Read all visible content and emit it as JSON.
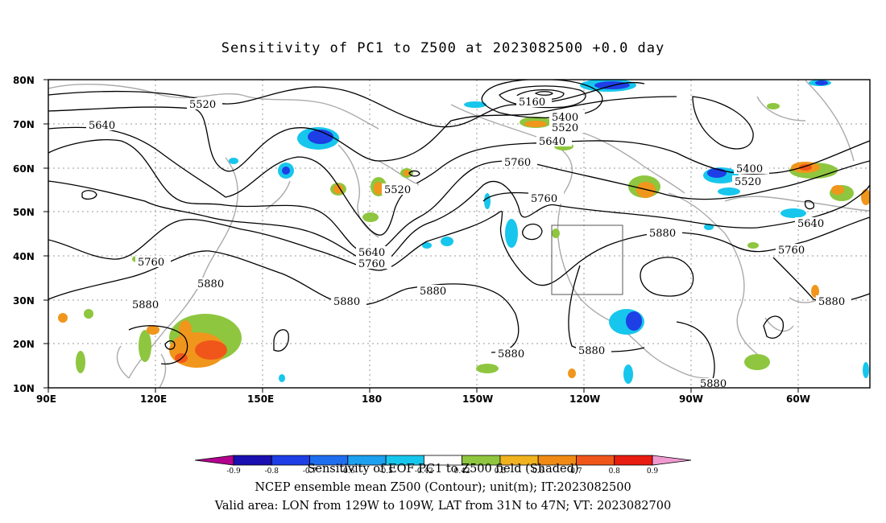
{
  "title": "Sensitivity of PC1 to Z500 at 2023082500 +0.0 day",
  "axes": {
    "y_labels": [
      "80N",
      "70N",
      "60N",
      "50N",
      "40N",
      "30N",
      "20N",
      "10N"
    ],
    "x_labels": [
      "90E",
      "120E",
      "150E",
      "180",
      "150W",
      "120W",
      "90W",
      "60W"
    ]
  },
  "contour_labels": [
    "5520",
    "5640",
    "5160",
    "5400",
    "5520",
    "5640",
    "5760",
    "5520",
    "5760",
    "5640",
    "5760",
    "5880",
    "5400",
    "5520",
    "5640",
    "5760",
    "5760",
    "5880",
    "5880",
    "5880",
    "5880",
    "5880",
    "5880",
    "5880",
    "5880"
  ],
  "colorbar": {
    "levels": [
      "-0.9",
      "-0.8",
      "-0.7",
      "-0.6",
      "-0.5",
      "-0.42",
      "0.42",
      "0.5",
      "0.6",
      "0.7",
      "0.8",
      "0.9"
    ],
    "colors": [
      "#b3008f",
      "#1a0fb0",
      "#1e3ee6",
      "#1f6ef0",
      "#1ca0f0",
      "#17c6ec",
      "#ffffff",
      "#8ec63f",
      "#f0b21e",
      "#f08a14",
      "#f0561a",
      "#e81c10",
      "#f09ad0"
    ]
  },
  "captions": {
    "line1": "Sensitivity of EOF PC1 to Z500 field (Shaded)",
    "line2": "NCEP ensemble mean Z500 (Contour); unit(m); IT:2023082500",
    "line3": "Valid area: LON from 129W to 109W, LAT from 31N to 47N; VT: 2023082700"
  }
}
